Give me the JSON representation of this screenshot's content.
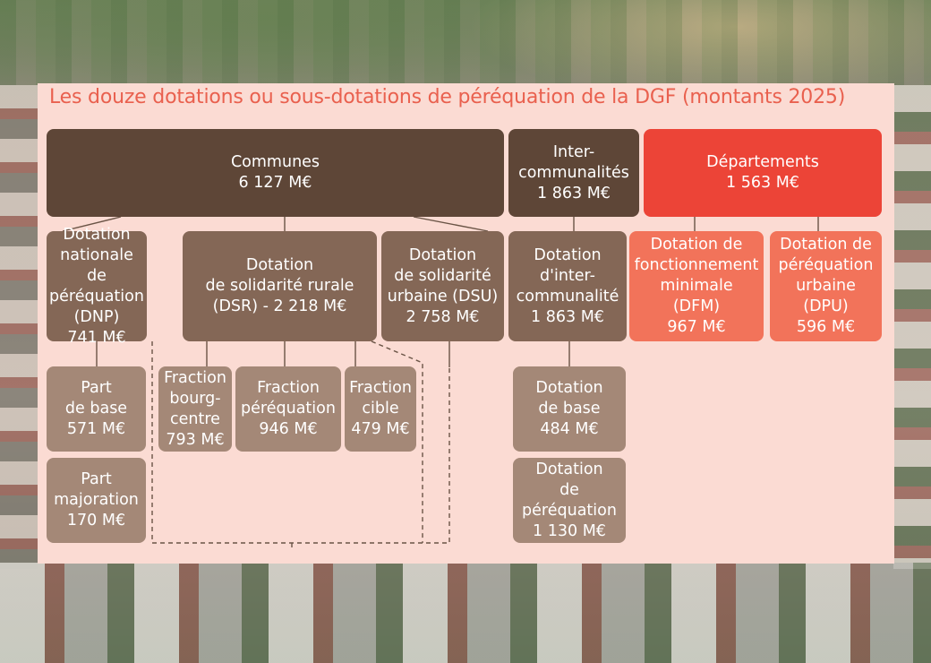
{
  "title": "Les douze dotations ou sous-dotations de péréquation de la DGF (montants 2025)",
  "level1": {
    "communes": {
      "label": "Communes",
      "amount": "6 127 M€"
    },
    "intercommunalites": {
      "label": "Inter-\ncommunalités",
      "amount": "1 863 M€"
    },
    "departements": {
      "label": "Départements",
      "amount": "1 563 M€"
    }
  },
  "level2": {
    "dnp": {
      "label": "Dotation\nnationale de\npéréquation\n(DNP)",
      "amount": "741 M€"
    },
    "dsr": {
      "label": "Dotation\nde solidarité rurale\n(DSR) - 2 218 M€"
    },
    "dsu": {
      "label": "Dotation\nde solidarité\nurbaine (DSU)",
      "amount": "2 758 M€"
    },
    "di": {
      "label": "Dotation\nd'inter-\ncommunalité",
      "amount": "1 863 M€"
    },
    "dfm": {
      "label": "Dotation de\nfonctionnement\nminimale\n(DFM)",
      "amount": "967 M€"
    },
    "dpu": {
      "label": "Dotation de\npéréquation\nurbaine\n(DPU)",
      "amount": "596 M€"
    }
  },
  "level3": {
    "part_base": {
      "label": "Part\nde base",
      "amount": "571 M€"
    },
    "part_majoration": {
      "label": "Part\nmajoration",
      "amount": "170 M€"
    },
    "fraction_bourg": {
      "label": "Fraction\nbourg-\ncentre",
      "amount": "793 M€"
    },
    "fraction_perequation": {
      "label": "Fraction\npéréquation",
      "amount": "946 M€"
    },
    "fraction_cible": {
      "label": "Fraction\ncible",
      "amount": "479 M€"
    },
    "dotation_base": {
      "label": "Dotation\nde base",
      "amount": "484 M€"
    },
    "dotation_perequation": {
      "label": "Dotation\nde\npéréquation",
      "amount": "1 130 M€"
    }
  },
  "colors": {
    "panel": "#fbdbd3",
    "title": "#e9604e",
    "dark_brown": "#5e4637",
    "mid_brown": "#846756",
    "light_brown": "#a48877",
    "red": "#ec4437",
    "orange": "#f2735a"
  }
}
